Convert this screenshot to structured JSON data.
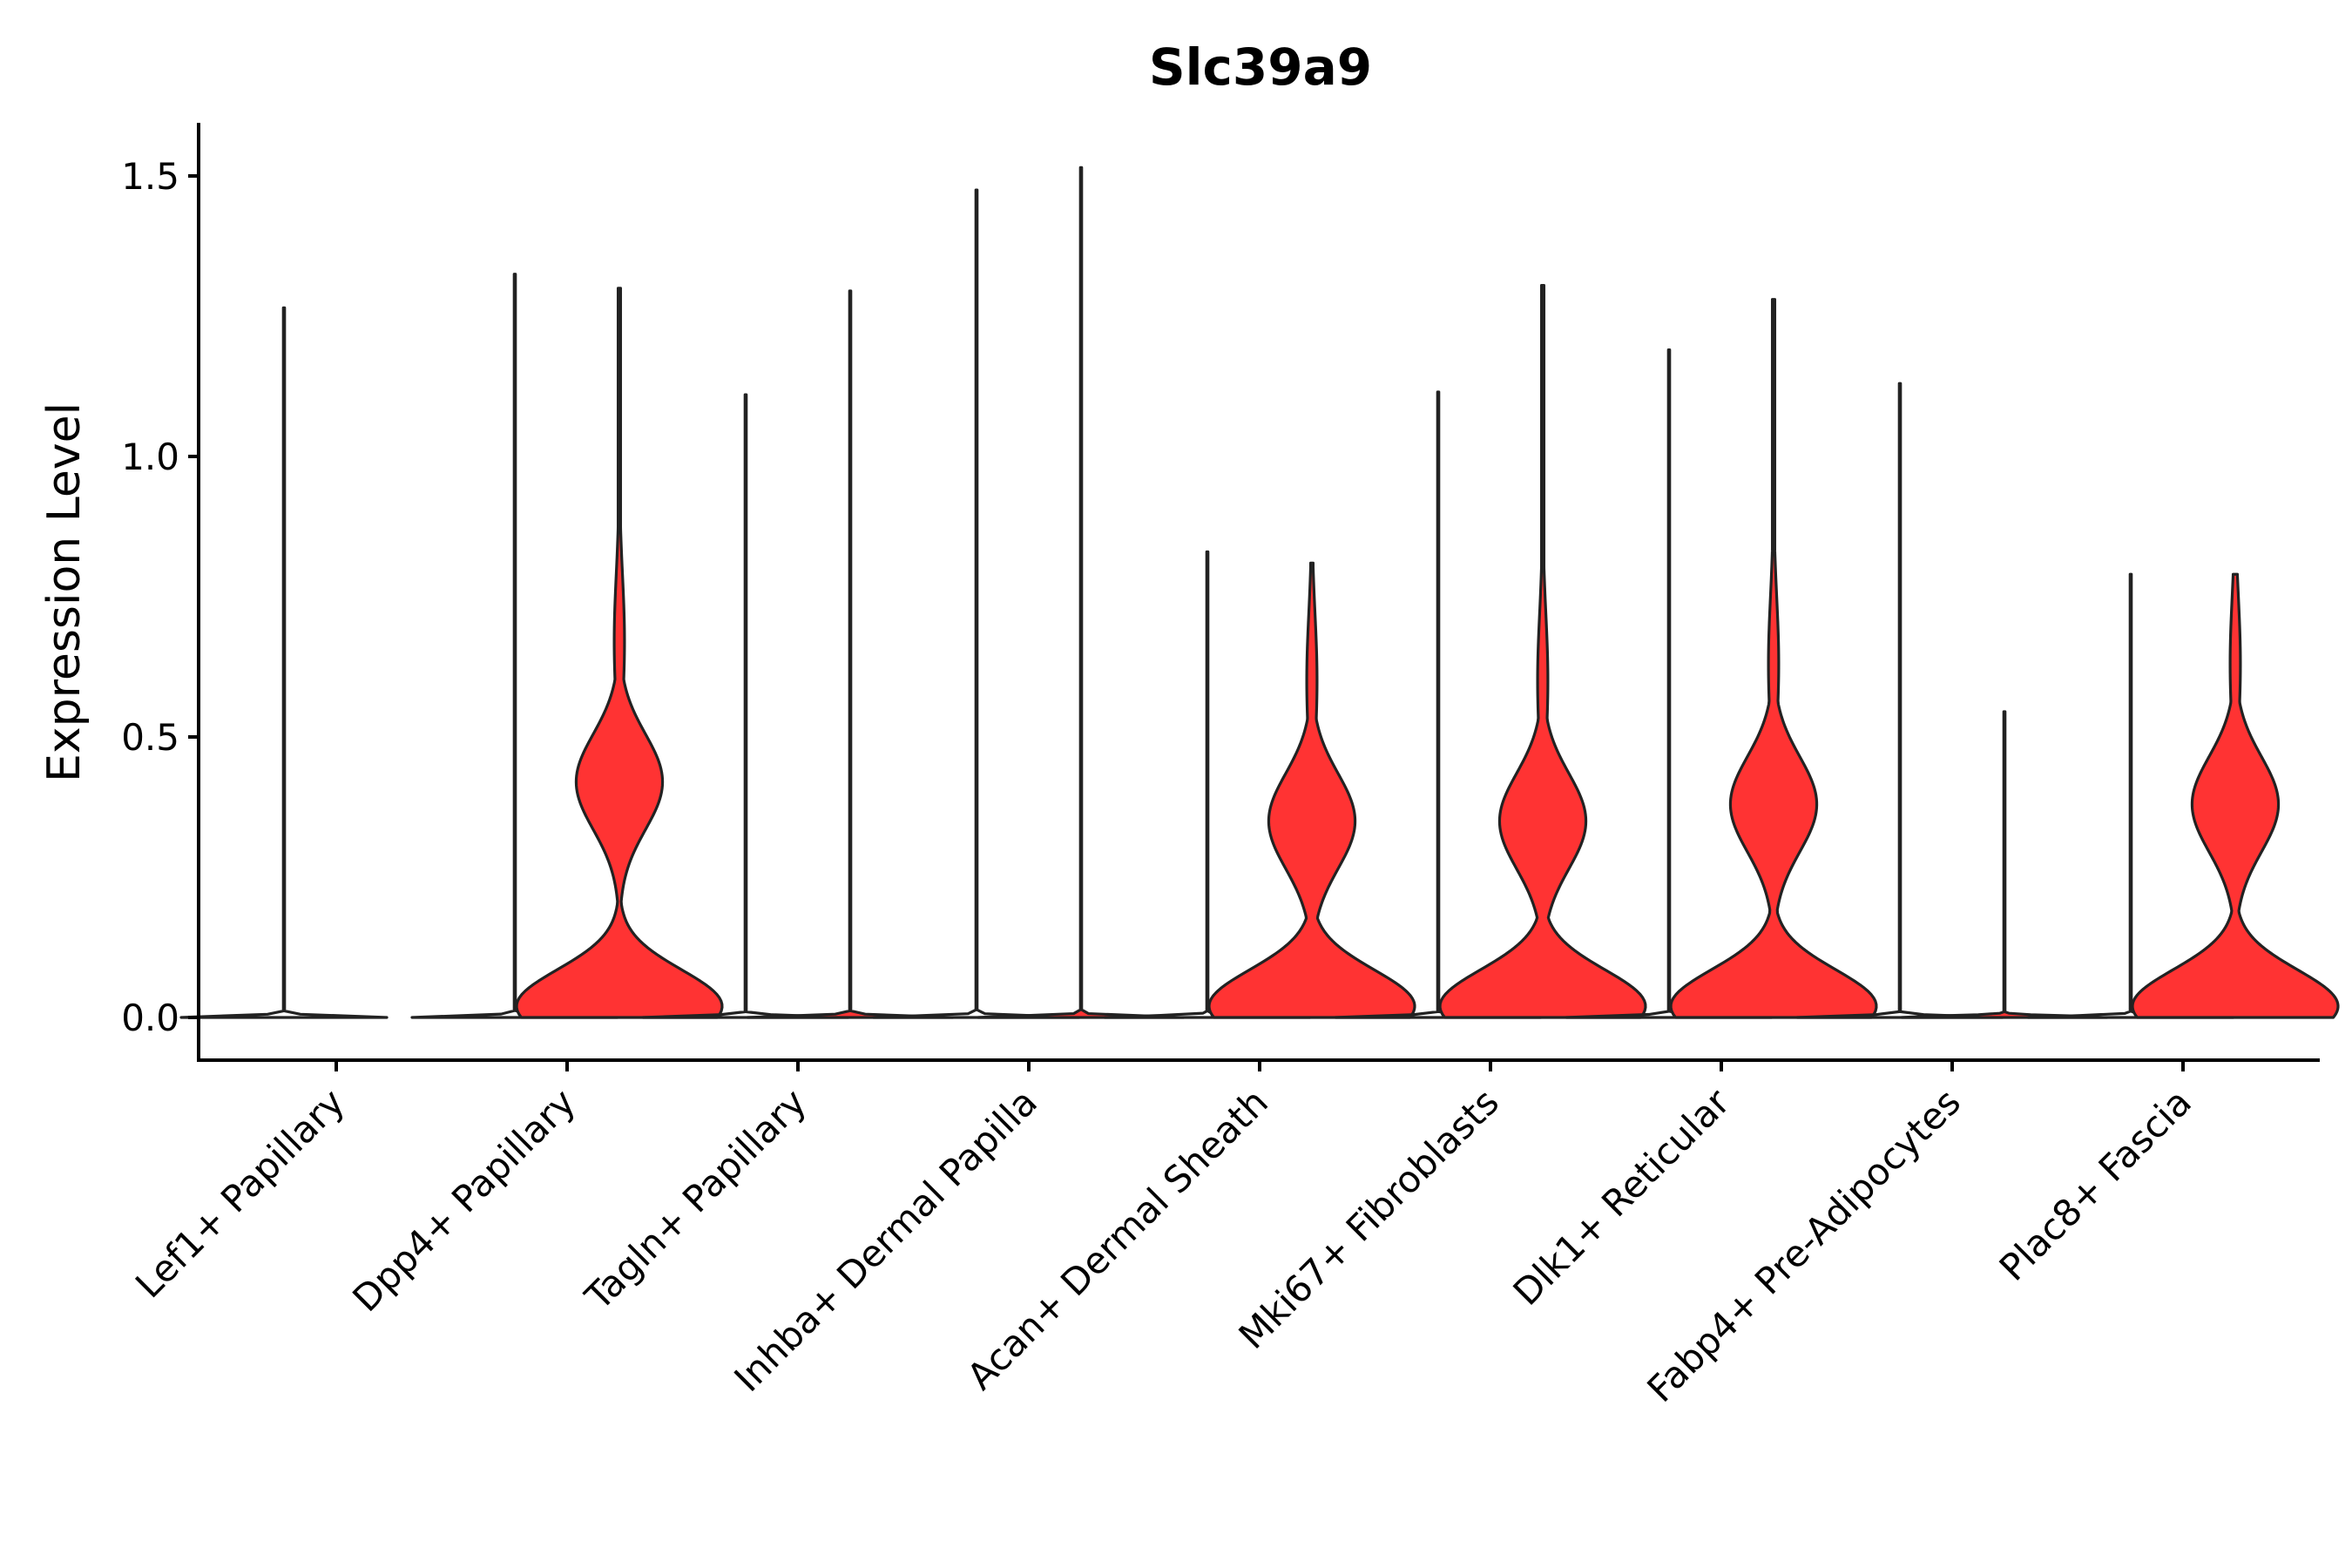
{
  "chart_data": {
    "type": "violin",
    "title": "Slc39a9",
    "xlabel": "",
    "ylabel": "Expression Level",
    "ylim": [
      -0.075,
      1.6
    ],
    "yticks": [
      {
        "value": 0.0,
        "label": "0.0"
      },
      {
        "value": 0.5,
        "label": "0.5"
      },
      {
        "value": 1.0,
        "label": "1.0"
      },
      {
        "value": 1.5,
        "label": "1.5"
      }
    ],
    "categories": [
      "Lef1+ Papillary",
      "Dpp4+ Papillary",
      "Tagln+ Papillary",
      "Inhba+ Dermal Papilla",
      "Acan+ Dermal Sheath",
      "Mki67+ Fibroblasts",
      "Dlk1+ Reticular",
      "Fabp4+ Pre-Adipocytes",
      "Plac8+ Fascia"
    ],
    "groups": [
      {
        "name": "group-1",
        "color": "#ffffff"
      },
      {
        "name": "group-2",
        "color": "#ff3333"
      }
    ],
    "series": [
      {
        "category": "Lef1+ Papillary",
        "group": "group-1",
        "max": 1.265,
        "width_scale": 1.0
      },
      {
        "category": "Lef1+ Papillary",
        "group": "group-2",
        "max": 0.0,
        "width_scale": 0.0
      },
      {
        "category": "Dpp4+ Papillary",
        "group": "group-1",
        "max": 1.325,
        "width_scale": 1.0
      },
      {
        "category": "Dpp4+ Papillary",
        "group": "group-2",
        "max": 1.3,
        "width_scale": 1.0,
        "mode": 0.42,
        "low_peak": 0.03
      },
      {
        "category": "Tagln+ Papillary",
        "group": "group-1",
        "max": 1.11,
        "width_scale": 1.0
      },
      {
        "category": "Tagln+ Papillary",
        "group": "group-2",
        "max": 1.295,
        "width_scale": 1.0
      },
      {
        "category": "Inhba+ Dermal Papilla",
        "group": "group-1",
        "max": 1.475,
        "width_scale": 1.0
      },
      {
        "category": "Inhba+ Dermal Papilla",
        "group": "group-2",
        "max": 1.515,
        "width_scale": 1.0
      },
      {
        "category": "Acan+ Dermal Sheath",
        "group": "group-1",
        "max": 0.83,
        "width_scale": 1.0
      },
      {
        "category": "Acan+ Dermal Sheath",
        "group": "group-2",
        "max": 0.81,
        "width_scale": 1.0,
        "mode": 0.35,
        "low_peak": 0.03
      },
      {
        "category": "Mki67+ Fibroblasts",
        "group": "group-1",
        "max": 1.115,
        "width_scale": 1.0
      },
      {
        "category": "Mki67+ Fibroblasts",
        "group": "group-2",
        "max": 1.305,
        "width_scale": 1.0,
        "mode": 0.35,
        "low_peak": 0.03
      },
      {
        "category": "Dlk1+ Reticular",
        "group": "group-1",
        "max": 1.19,
        "width_scale": 1.0
      },
      {
        "category": "Dlk1+ Reticular",
        "group": "group-2",
        "max": 1.28,
        "width_scale": 1.0,
        "mode": 0.38,
        "low_peak": 0.03
      },
      {
        "category": "Fabp4+ Pre-Adipocytes",
        "group": "group-1",
        "max": 1.13,
        "width_scale": 1.0
      },
      {
        "category": "Fabp4+ Pre-Adipocytes",
        "group": "group-2",
        "max": 0.545,
        "width_scale": 1.0
      },
      {
        "category": "Plac8+ Fascia",
        "group": "group-1",
        "max": 0.79,
        "width_scale": 1.0
      },
      {
        "category": "Plac8+ Fascia",
        "group": "group-2",
        "max": 0.79,
        "width_scale": 1.0,
        "mode": 0.38,
        "low_peak": 0.03
      }
    ]
  }
}
